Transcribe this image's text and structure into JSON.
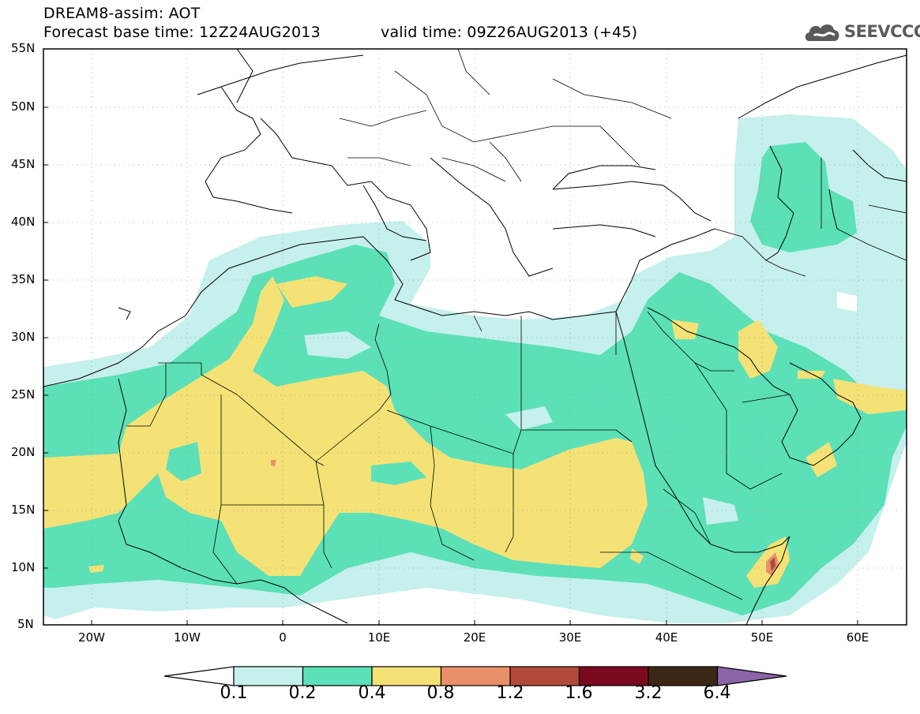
{
  "header": {
    "title": "DREAM8-assim: AOT",
    "base_time": "Forecast base time: 12Z24AUG2013",
    "valid_time": "valid time: 09Z26AUG2013 (+45)"
  },
  "logo": {
    "text": "SEEVCCC",
    "icon": "cloud-logo-icon"
  },
  "map": {
    "lat_labels": [
      "55N",
      "50N",
      "45N",
      "40N",
      "35N",
      "30N",
      "25N",
      "20N",
      "15N",
      "10N",
      "5N"
    ],
    "lon_labels": [
      "20W",
      "10W",
      "0",
      "10E",
      "20E",
      "30E",
      "40E",
      "50E",
      "60E"
    ],
    "lat_range": [
      5,
      55
    ],
    "lon_range": [
      -25,
      65
    ],
    "variable": "AOT"
  },
  "colorbar": {
    "labels": [
      "0.1",
      "0.2",
      "0.4",
      "0.8",
      "1.2",
      "1.6",
      "3.2",
      "6.4"
    ],
    "colors": [
      "#ffffff",
      "#c6f0ec",
      "#5ce0b8",
      "#f5e276",
      "#e8906a",
      "#b24a3c",
      "#7b0a20",
      "#3c2616",
      "#8c64a8"
    ]
  }
}
